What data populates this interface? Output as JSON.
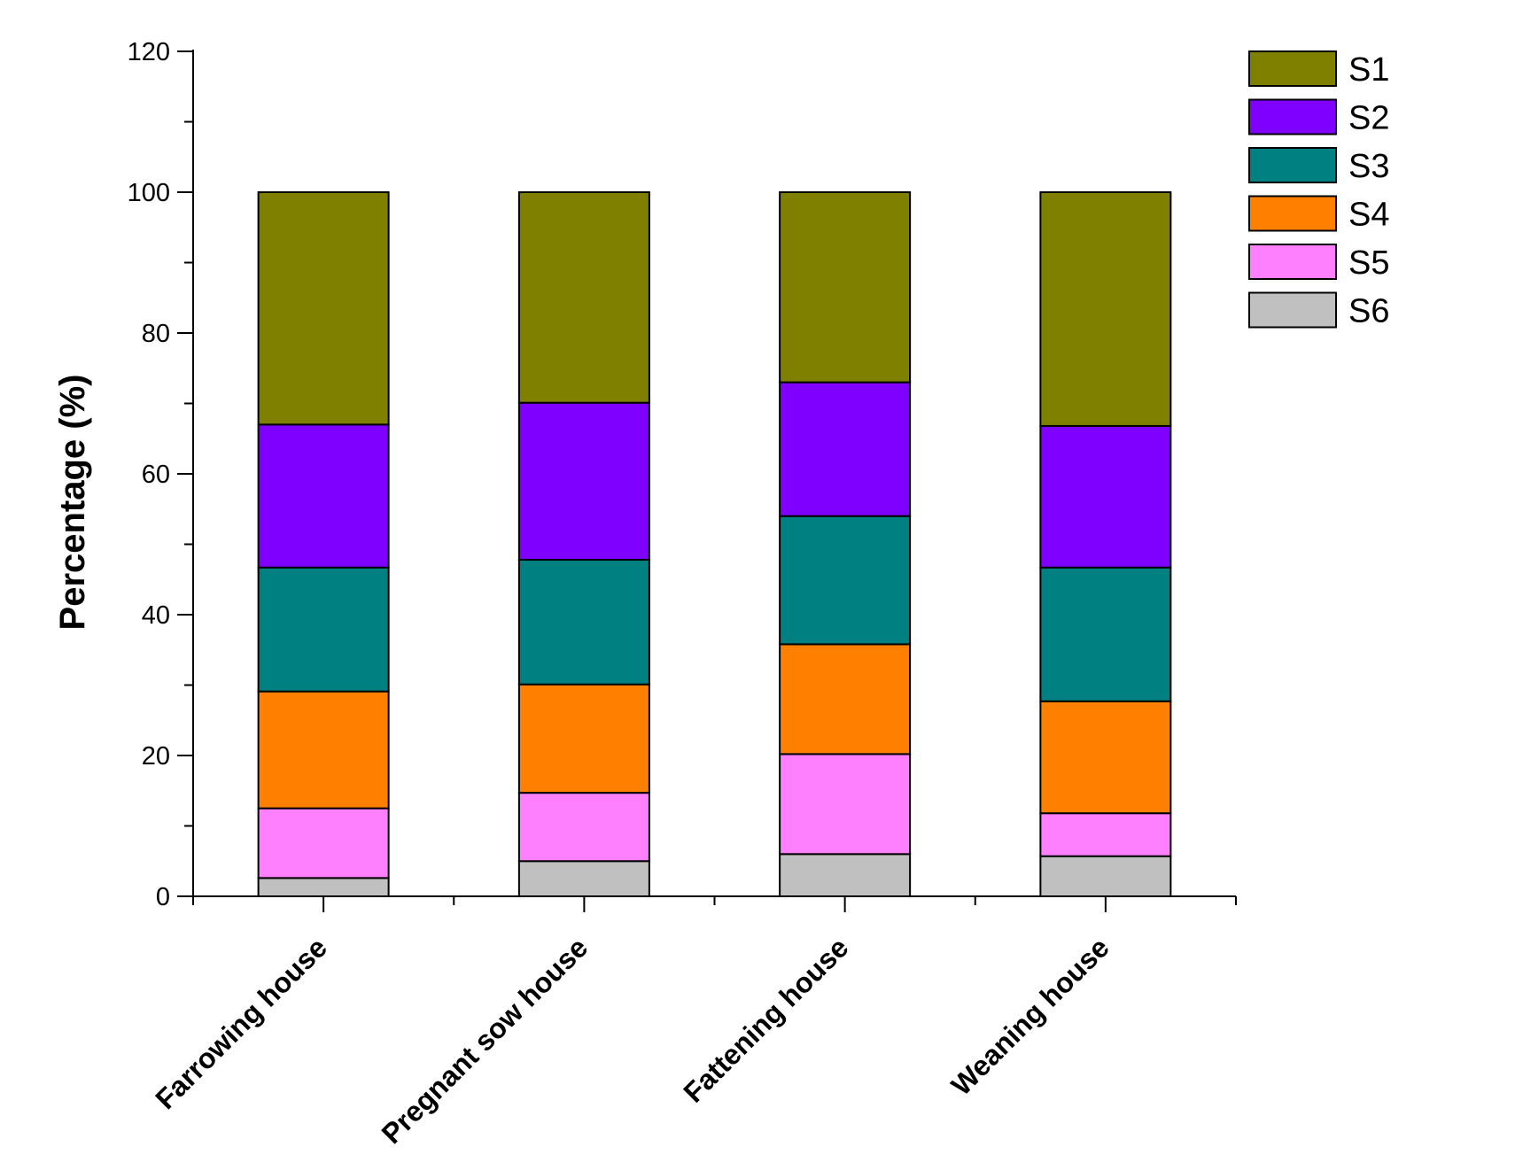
{
  "chart_data": {
    "type": "bar",
    "stacked": true,
    "title": "",
    "xlabel": "",
    "ylabel": "Percentage (%)",
    "ylim": [
      0,
      120
    ],
    "yticks": [
      "0",
      "20",
      "40",
      "60",
      "80",
      "100",
      "120"
    ],
    "grid": false,
    "legend_position": "top-right",
    "categories": [
      "Farrowing house",
      "Pregnant sow house",
      "Fattening house",
      "Weaning house"
    ],
    "series": [
      {
        "name": "S6",
        "color": "#C0C0C0",
        "values": [
          2.6,
          5.0,
          6.0,
          5.7
        ]
      },
      {
        "name": "S5",
        "color": "#FF80FF",
        "values": [
          9.9,
          9.7,
          14.2,
          6.1
        ]
      },
      {
        "name": "S4",
        "color": "#FF8000",
        "values": [
          16.6,
          15.4,
          15.6,
          15.9
        ]
      },
      {
        "name": "S3",
        "color": "#008080",
        "values": [
          17.6,
          17.7,
          18.2,
          19.0
        ]
      },
      {
        "name": "S2",
        "color": "#8000FF",
        "values": [
          20.3,
          22.3,
          19.0,
          20.1
        ]
      },
      {
        "name": "S1",
        "color": "#808000",
        "values": [
          33.0,
          29.9,
          27.0,
          33.2
        ]
      }
    ],
    "legend_order": [
      "S1",
      "S2",
      "S3",
      "S4",
      "S5",
      "S6"
    ]
  }
}
